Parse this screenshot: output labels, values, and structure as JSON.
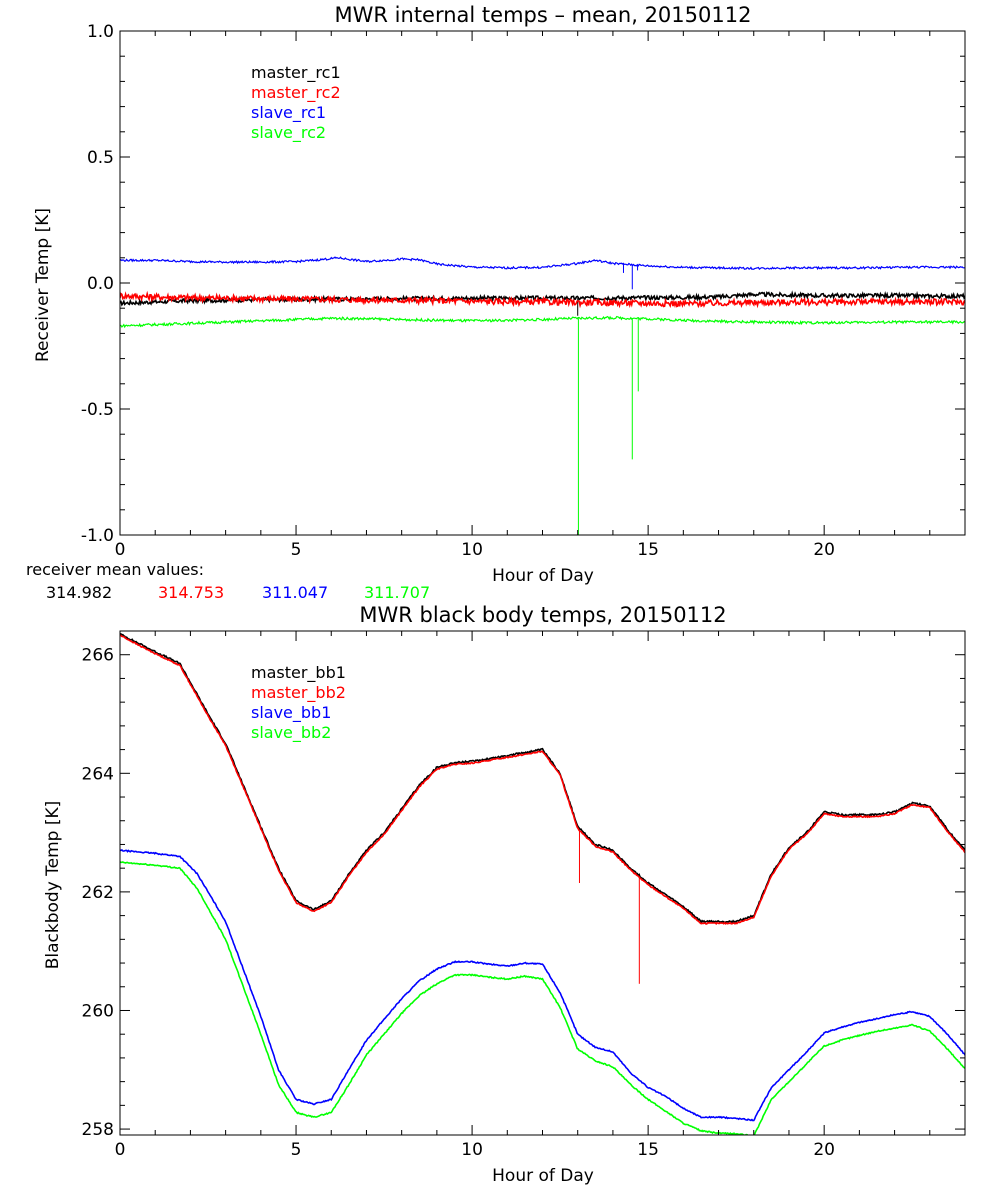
{
  "chart_data": [
    {
      "type": "line",
      "title": "MWR internal temps – mean, 20150112",
      "xlabel": "Hour of Day",
      "ylabel": "Receiver Temp [K]",
      "xlim": [
        0,
        24
      ],
      "ylim": [
        -1.0,
        1.0
      ],
      "x_ticks": [
        0,
        5,
        10,
        15,
        20
      ],
      "x_tick_labels": [
        "0",
        "5",
        "10",
        "15",
        "20"
      ],
      "y_ticks": [
        1.0,
        0.5,
        0.0,
        -0.5,
        -1.0
      ],
      "y_tick_labels": [
        "1.0",
        "0.5",
        "0.0",
        "-0.5",
        "-1.0"
      ],
      "grid": false,
      "legend_position": "top-left",
      "series": [
        {
          "name": "master_rc1",
          "color": "#000000",
          "noise": 0.008,
          "x": [
            0,
            1,
            2,
            3,
            4,
            5,
            6,
            7,
            8,
            9,
            10,
            11,
            12,
            13,
            14,
            15,
            16,
            17,
            18,
            19,
            20,
            21,
            22,
            23,
            24
          ],
          "y": [
            -0.08,
            -0.075,
            -0.07,
            -0.068,
            -0.066,
            -0.065,
            -0.064,
            -0.063,
            -0.062,
            -0.061,
            -0.06,
            -0.06,
            -0.06,
            -0.06,
            -0.059,
            -0.058,
            -0.057,
            -0.055,
            -0.045,
            -0.048,
            -0.05,
            -0.05,
            -0.05,
            -0.052,
            -0.052
          ],
          "spikes": [
            {
              "x": 13.0,
              "y": -0.13
            }
          ]
        },
        {
          "name": "master_rc2",
          "color": "#ff0000",
          "noise": 0.012,
          "x": [
            0,
            1,
            2,
            3,
            4,
            5,
            6,
            7,
            8,
            9,
            10,
            11,
            12,
            13,
            14,
            15,
            16,
            17,
            18,
            19,
            20,
            21,
            22,
            23,
            24
          ],
          "y": [
            -0.05,
            -0.055,
            -0.058,
            -0.06,
            -0.062,
            -0.064,
            -0.065,
            -0.067,
            -0.068,
            -0.07,
            -0.072,
            -0.074,
            -0.075,
            -0.077,
            -0.078,
            -0.08,
            -0.082,
            -0.08,
            -0.078,
            -0.076,
            -0.076,
            -0.075,
            -0.074,
            -0.075,
            -0.075
          ],
          "spikes": []
        },
        {
          "name": "slave_rc1",
          "color": "#0000ff",
          "noise": 0.004,
          "x": [
            0,
            1,
            2,
            3,
            4,
            5,
            5.5,
            6.2,
            7,
            8,
            8.5,
            9,
            10,
            11,
            12,
            13,
            13.5,
            14,
            15,
            16,
            17,
            18,
            19,
            20,
            21,
            22,
            23,
            24
          ],
          "y": [
            0.09,
            0.09,
            0.085,
            0.083,
            0.083,
            0.085,
            0.09,
            0.1,
            0.085,
            0.095,
            0.092,
            0.075,
            0.063,
            0.06,
            0.062,
            0.078,
            0.09,
            0.078,
            0.068,
            0.062,
            0.06,
            0.058,
            0.06,
            0.06,
            0.06,
            0.062,
            0.063,
            0.063
          ],
          "spikes": [
            {
              "x": 13.0,
              "y": 0.08
            },
            {
              "x": 14.3,
              "y": 0.04
            },
            {
              "x": 14.55,
              "y": -0.025
            },
            {
              "x": 14.7,
              "y": 0.05
            }
          ]
        },
        {
          "name": "slave_rc2",
          "color": "#00ff00",
          "noise": 0.005,
          "x": [
            0,
            1,
            2,
            3,
            4,
            5,
            6,
            7,
            8,
            9,
            10,
            11,
            12,
            13,
            14,
            15,
            16,
            17,
            18,
            19,
            20,
            21,
            22,
            23,
            24
          ],
          "y": [
            -0.17,
            -0.165,
            -0.16,
            -0.155,
            -0.15,
            -0.145,
            -0.14,
            -0.142,
            -0.145,
            -0.148,
            -0.15,
            -0.148,
            -0.145,
            -0.14,
            -0.138,
            -0.142,
            -0.148,
            -0.152,
            -0.155,
            -0.157,
            -0.158,
            -0.156,
            -0.155,
            -0.155,
            -0.155
          ],
          "spikes": [
            {
              "x": 13.02,
              "y": -1.0
            },
            {
              "x": 14.55,
              "y": -0.7
            },
            {
              "x": 14.72,
              "y": -0.43
            }
          ]
        }
      ]
    },
    {
      "type": "line",
      "title": "MWR black body temps, 20150112",
      "xlabel": "Hour of Day",
      "ylabel": "Blackbody Temp [K]",
      "xlim": [
        0,
        24
      ],
      "ylim": [
        257.9,
        266.4
      ],
      "x_ticks": [
        0,
        5,
        10,
        15,
        20
      ],
      "x_tick_labels": [
        "0",
        "5",
        "10",
        "15",
        "20"
      ],
      "y_ticks": [
        266,
        264,
        262,
        260,
        258
      ],
      "y_tick_labels": [
        "266",
        "264",
        "262",
        "260",
        "258"
      ],
      "grid": false,
      "legend_position": "top-left",
      "series": [
        {
          "name": "master_bb1",
          "color": "#000000",
          "noise": 0.015,
          "x": [
            0,
            0.5,
            1,
            1.7,
            2.5,
            3,
            3.5,
            4,
            4.5,
            5,
            5.5,
            6,
            6.5,
            7,
            7.5,
            8,
            8.5,
            9,
            9.5,
            10,
            10.5,
            11,
            11.5,
            12,
            12.5,
            13,
            13.5,
            14,
            14.5,
            15,
            15.5,
            16,
            16.5,
            17,
            17.5,
            18,
            18.5,
            19,
            19.5,
            20,
            20.5,
            21,
            21.5,
            22,
            22.5,
            23,
            23.5,
            24
          ],
          "y": [
            266.35,
            266.2,
            266.05,
            265.85,
            265.0,
            264.5,
            263.8,
            263.1,
            262.4,
            261.85,
            261.7,
            261.85,
            262.3,
            262.7,
            263.0,
            263.4,
            263.8,
            264.1,
            264.18,
            264.2,
            264.25,
            264.3,
            264.35,
            264.4,
            264.0,
            263.1,
            262.8,
            262.7,
            262.4,
            262.15,
            261.95,
            261.75,
            261.5,
            261.5,
            261.5,
            261.6,
            262.3,
            262.75,
            263.0,
            263.35,
            263.3,
            263.3,
            263.3,
            263.35,
            263.5,
            263.45,
            263.05,
            262.7
          ],
          "spikes": []
        },
        {
          "name": "master_bb2",
          "color": "#ff0000",
          "noise": 0.01,
          "x": [
            0,
            0.5,
            1,
            1.7,
            2.5,
            3,
            3.5,
            4,
            4.5,
            5,
            5.5,
            6,
            6.5,
            7,
            7.5,
            8,
            8.5,
            9,
            9.5,
            10,
            10.5,
            11,
            11.5,
            12,
            12.5,
            13,
            13.5,
            14,
            14.5,
            15,
            15.5,
            16,
            16.5,
            17,
            17.5,
            18,
            18.5,
            19,
            19.5,
            20,
            20.5,
            21,
            21.5,
            22,
            22.5,
            23,
            23.5,
            24
          ],
          "y": [
            266.33,
            266.17,
            266.02,
            265.82,
            264.97,
            264.47,
            263.77,
            263.07,
            262.37,
            261.82,
            261.67,
            261.82,
            262.27,
            262.67,
            262.97,
            263.37,
            263.77,
            264.07,
            264.15,
            264.17,
            264.22,
            264.27,
            264.32,
            264.37,
            263.97,
            263.07,
            262.77,
            262.67,
            262.37,
            262.12,
            261.92,
            261.72,
            261.47,
            261.47,
            261.47,
            261.57,
            262.27,
            262.72,
            262.97,
            263.32,
            263.27,
            263.27,
            263.27,
            263.32,
            263.47,
            263.42,
            263.02,
            262.67
          ],
          "spikes": [
            {
              "x": 13.05,
              "y": 262.15
            },
            {
              "x": 14.75,
              "y": 260.45
            }
          ]
        },
        {
          "name": "slave_bb1",
          "color": "#0000ff",
          "noise": 0.01,
          "x": [
            0,
            1,
            1.7,
            2.2,
            3,
            3.5,
            4,
            4.5,
            5,
            5.5,
            6,
            6.5,
            7,
            7.5,
            8,
            8.5,
            9,
            9.5,
            10,
            10.5,
            11,
            11.5,
            12,
            12.5,
            13,
            13.5,
            14,
            14.5,
            15,
            15.5,
            16,
            16.5,
            17,
            17.5,
            18,
            18.5,
            19,
            19.5,
            20,
            20.5,
            21,
            21.5,
            22,
            22.5,
            23,
            23.5,
            24
          ],
          "y": [
            262.7,
            262.65,
            262.6,
            262.3,
            261.5,
            260.7,
            259.9,
            259.0,
            258.5,
            258.42,
            258.5,
            259.0,
            259.5,
            259.85,
            260.2,
            260.5,
            260.7,
            260.82,
            260.82,
            260.78,
            260.75,
            260.8,
            260.78,
            260.3,
            259.6,
            259.38,
            259.3,
            258.95,
            258.7,
            258.55,
            258.35,
            258.2,
            258.2,
            258.18,
            258.15,
            258.7,
            259.0,
            259.3,
            259.62,
            259.72,
            259.8,
            259.86,
            259.93,
            259.98,
            259.9,
            259.6,
            259.25
          ],
          "spikes": []
        },
        {
          "name": "slave_bb2",
          "color": "#00ff00",
          "noise": 0.01,
          "x": [
            0,
            1,
            1.7,
            2.2,
            3,
            3.5,
            4,
            4.5,
            5,
            5.5,
            6,
            6.5,
            7,
            7.5,
            8,
            8.5,
            9,
            9.5,
            10,
            10.5,
            11,
            11.5,
            12,
            12.5,
            13,
            13.5,
            14,
            14.5,
            15,
            15.5,
            16,
            16.5,
            17,
            17.5,
            18,
            18.5,
            19,
            19.5,
            20,
            20.5,
            21,
            21.5,
            22,
            22.5,
            23,
            23.5,
            24
          ],
          "y": [
            262.5,
            262.45,
            262.4,
            262.05,
            261.2,
            260.4,
            259.6,
            258.75,
            258.28,
            258.2,
            258.28,
            258.75,
            259.25,
            259.6,
            259.95,
            260.25,
            260.45,
            260.6,
            260.6,
            260.56,
            260.53,
            260.58,
            260.53,
            260.05,
            259.35,
            259.15,
            259.05,
            258.75,
            258.5,
            258.3,
            258.1,
            257.97,
            257.93,
            257.92,
            257.88,
            258.5,
            258.8,
            259.1,
            259.4,
            259.5,
            259.58,
            259.65,
            259.7,
            259.76,
            259.65,
            259.35,
            259.02
          ],
          "spikes": []
        }
      ]
    }
  ],
  "receiver_means": {
    "heading": "receiver mean values:",
    "values": [
      {
        "text": "314.982",
        "color": "#000000"
      },
      {
        "text": "314.753",
        "color": "#ff0000"
      },
      {
        "text": "311.047",
        "color": "#0000ff"
      },
      {
        "text": "311.707",
        "color": "#00ff00"
      }
    ]
  }
}
